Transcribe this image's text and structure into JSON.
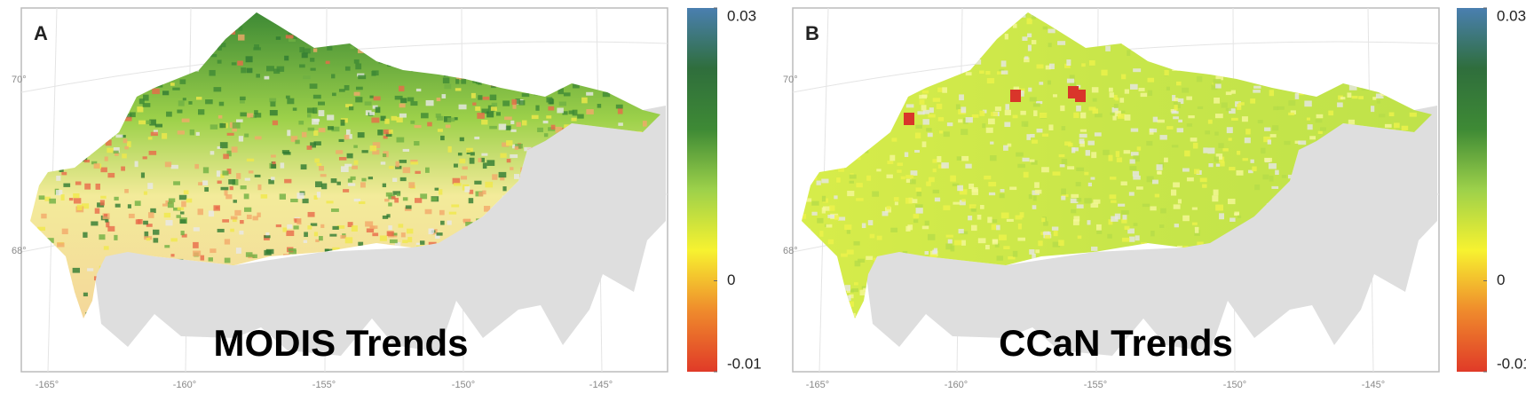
{
  "panels": [
    {
      "label": "A",
      "title": "MODIS Trends",
      "lat_labels": [
        "70°",
        "68°"
      ],
      "lon_labels": [
        "-165°",
        "-160°",
        "-155°",
        "-150°",
        "-145°"
      ]
    },
    {
      "label": "B",
      "title": "CCaN Trends",
      "lat_labels": [
        "70°",
        "68°"
      ],
      "lon_labels": [
        "-165°",
        "-160°",
        "-155°",
        "-150°",
        "-145°"
      ]
    }
  ],
  "colorbar": {
    "lim": [
      -0.01,
      0.03
    ],
    "ticks": [
      0.03,
      0,
      -0.01
    ],
    "colors": [
      "#e03a28",
      "#ef8a2c",
      "#f7f230",
      "#9dd14a",
      "#3e8a35",
      "#2f6e3c",
      "#4a7fb0"
    ]
  }
}
